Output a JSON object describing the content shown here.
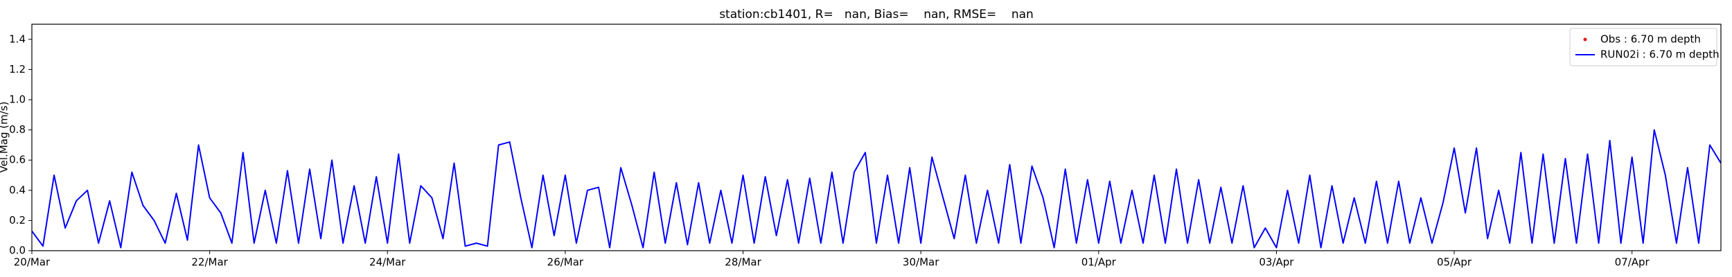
{
  "chart_data": {
    "type": "line",
    "title": "station:cb1401, R=   nan, Bias=    nan, RMSE=    nan",
    "y_label": "Vel.Mag (m/s)",
    "x": [
      0,
      3,
      6,
      9,
      12,
      15,
      18,
      21,
      24,
      27,
      30,
      33,
      36,
      39,
      42,
      45,
      48,
      51,
      54,
      57,
      60,
      63,
      66,
      69,
      72,
      75,
      78,
      81,
      84,
      87,
      90,
      93,
      96,
      99,
      102,
      105,
      108,
      111,
      114,
      117,
      120,
      123,
      126,
      129,
      132,
      135,
      138,
      141,
      144,
      147,
      150,
      153,
      156,
      159,
      162,
      165,
      168,
      171,
      174,
      177,
      180,
      183,
      186,
      189,
      192,
      195,
      198,
      201,
      204,
      207,
      210,
      213,
      216,
      219,
      222,
      225,
      228,
      231,
      234,
      237,
      240,
      243,
      246,
      249,
      252,
      255,
      258,
      261,
      264,
      267,
      270,
      273,
      276,
      279,
      282,
      285,
      288,
      291,
      294,
      297,
      300,
      303,
      306,
      309,
      312,
      315,
      318,
      321,
      324,
      327,
      330,
      333,
      336,
      339,
      342,
      345,
      348,
      351,
      354,
      357,
      360,
      363,
      366,
      369,
      372,
      375,
      378,
      381,
      384,
      387,
      390,
      393,
      396,
      399,
      402,
      405,
      408,
      411,
      414,
      417,
      420,
      423,
      426,
      429,
      432,
      435,
      438,
      441,
      444,
      447,
      450,
      453,
      456
    ],
    "series": [
      {
        "name": "Obs : 6.70 m depth",
        "color": "#e41a1c",
        "style": "marker",
        "values": [
          null,
          null,
          null,
          null,
          null,
          null,
          null,
          null,
          null,
          null,
          null,
          null,
          null,
          null,
          null,
          null,
          null,
          null,
          null,
          null,
          null,
          null,
          null,
          null,
          null,
          null,
          null,
          null,
          null,
          null,
          null,
          null,
          null,
          null,
          null,
          null,
          null,
          null,
          null,
          null,
          null,
          null,
          null,
          null,
          null,
          null,
          null,
          null,
          null,
          null,
          null,
          null,
          null,
          null,
          null,
          null,
          null,
          null,
          null,
          null,
          null,
          null,
          null,
          null,
          null,
          null,
          null,
          null,
          null,
          null,
          null,
          null,
          null,
          null,
          null,
          null,
          null,
          null,
          null,
          null,
          null,
          null,
          null,
          null,
          null,
          null,
          null,
          null,
          null,
          null,
          null,
          null,
          null,
          null,
          null,
          null,
          null,
          null,
          null,
          null,
          null,
          null,
          null,
          null,
          null,
          null,
          null,
          null,
          null,
          null,
          null,
          null,
          null,
          null,
          null,
          null,
          null,
          null,
          null,
          null,
          null,
          null,
          null,
          null,
          null,
          null,
          null,
          null,
          null,
          null,
          null,
          null,
          null,
          null,
          null,
          null,
          null,
          null,
          null,
          null,
          null,
          null,
          null,
          null,
          null,
          null,
          null,
          null,
          null,
          null,
          null,
          null,
          null
        ]
      },
      {
        "name": "RUN02i : 6.70 m depth",
        "color": "#0000ff",
        "style": "line",
        "values": [
          0.13,
          0.03,
          0.5,
          0.15,
          0.33,
          0.4,
          0.05,
          0.33,
          0.02,
          0.52,
          0.3,
          0.2,
          0.05,
          0.38,
          0.07,
          0.7,
          0.35,
          0.25,
          0.05,
          0.65,
          0.05,
          0.4,
          0.05,
          0.53,
          0.05,
          0.54,
          0.08,
          0.6,
          0.05,
          0.43,
          0.05,
          0.49,
          0.05,
          0.64,
          0.05,
          0.43,
          0.35,
          0.08,
          0.58,
          0.03,
          0.05,
          0.03,
          0.7,
          0.72,
          0.35,
          0.02,
          0.5,
          0.1,
          0.5,
          0.05,
          0.4,
          0.42,
          0.02,
          0.55,
          0.3,
          0.02,
          0.52,
          0.05,
          0.45,
          0.04,
          0.45,
          0.05,
          0.4,
          0.05,
          0.5,
          0.05,
          0.49,
          0.1,
          0.47,
          0.05,
          0.48,
          0.05,
          0.52,
          0.05,
          0.52,
          0.65,
          0.05,
          0.5,
          0.05,
          0.55,
          0.05,
          0.62,
          0.35,
          0.08,
          0.5,
          0.05,
          0.4,
          0.05,
          0.57,
          0.05,
          0.56,
          0.35,
          0.02,
          0.54,
          0.05,
          0.47,
          0.05,
          0.46,
          0.05,
          0.4,
          0.05,
          0.5,
          0.05,
          0.54,
          0.05,
          0.47,
          0.05,
          0.42,
          0.05,
          0.43,
          0.02,
          0.15,
          0.02,
          0.4,
          0.05,
          0.5,
          0.02,
          0.43,
          0.05,
          0.35,
          0.05,
          0.46,
          0.05,
          0.46,
          0.05,
          0.35,
          0.05,
          0.32,
          0.68,
          0.25,
          0.68,
          0.08,
          0.4,
          0.05,
          0.65,
          0.05,
          0.64,
          0.05,
          0.61,
          0.05,
          0.64,
          0.05,
          0.73,
          0.05,
          0.62,
          0.05,
          0.8,
          0.5,
          0.05,
          0.55,
          0.05,
          0.7,
          0.58
        ]
      }
    ],
    "xlim": [
      0,
      456
    ],
    "xticks": [
      {
        "value": 0,
        "label": "20/Mar"
      },
      {
        "value": 48,
        "label": "22/Mar"
      },
      {
        "value": 96,
        "label": "24/Mar"
      },
      {
        "value": 144,
        "label": "26/Mar"
      },
      {
        "value": 192,
        "label": "28/Mar"
      },
      {
        "value": 240,
        "label": "30/Mar"
      },
      {
        "value": 288,
        "label": "01/Apr"
      },
      {
        "value": 336,
        "label": "03/Apr"
      },
      {
        "value": 384,
        "label": "05/Apr"
      },
      {
        "value": 432,
        "label": "07/Apr"
      }
    ],
    "ylim": [
      0,
      1.5
    ],
    "yticks": [
      {
        "value": 0,
        "label": "0.0"
      },
      0.2,
      0.4,
      0.6,
      0.8,
      {
        "value": 1,
        "label": "1.0"
      },
      1.2,
      1.4
    ],
    "grid": false,
    "legend": "upper right"
  }
}
